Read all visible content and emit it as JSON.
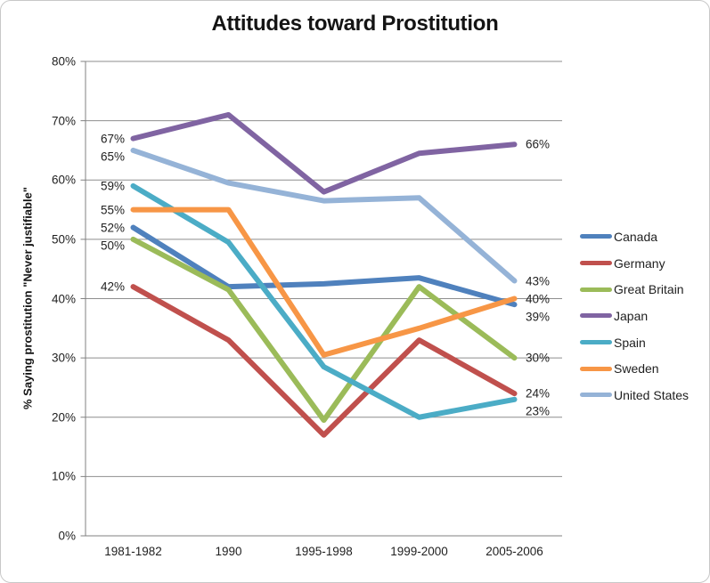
{
  "frame": {
    "background": "#FFFFFF",
    "border_color": "#C8C8C8"
  },
  "chart_data": {
    "type": "line",
    "title": "Attitudes toward Prostitution",
    "xlabel": "",
    "ylabel": "% Saying prostitution \"Never justifiable\"",
    "categories": [
      "1981-1982",
      "1990",
      "1995-1998",
      "1999-2000",
      "2005-2006"
    ],
    "y_tick_labels": [
      "80%",
      "70%",
      "60%",
      "50%",
      "40%",
      "30%",
      "20%",
      "10%",
      "0%"
    ],
    "ylim": [
      0,
      80
    ],
    "grid": "horizontal",
    "gridline_color": "#8E8E8E",
    "axis_color": "#808080",
    "legend_position": "right",
    "series": [
      {
        "name": "Canada",
        "color": "#4F81BD",
        "values": [
          52,
          42,
          42.5,
          43.5,
          39
        ],
        "first_label": "52%",
        "last_label": "39%"
      },
      {
        "name": "Germany",
        "color": "#C0504D",
        "values": [
          42,
          33,
          17,
          33,
          24
        ],
        "first_label": "42%",
        "last_label": "24%"
      },
      {
        "name": "Great Britain",
        "color": "#9BBB59",
        "values": [
          50,
          41.5,
          19.5,
          42,
          30
        ],
        "first_label": "50%",
        "last_label": "30%"
      },
      {
        "name": "Japan",
        "color": "#8064A2",
        "values": [
          67,
          71,
          58,
          64.5,
          66
        ],
        "first_label": "67%",
        "last_label": "66%"
      },
      {
        "name": "Spain",
        "color": "#4BACC6",
        "values": [
          59,
          49.5,
          28.5,
          20,
          23
        ],
        "first_label": "59%",
        "last_label": "23%"
      },
      {
        "name": "Sweden",
        "color": "#F79646",
        "values": [
          55,
          55,
          30.5,
          35,
          40
        ],
        "first_label": "55%",
        "last_label": "40%"
      },
      {
        "name": "United States",
        "color": "#95B3D7",
        "values": [
          65,
          59.5,
          56.5,
          57,
          43
        ],
        "first_label": "65%",
        "last_label": "43%"
      }
    ]
  }
}
